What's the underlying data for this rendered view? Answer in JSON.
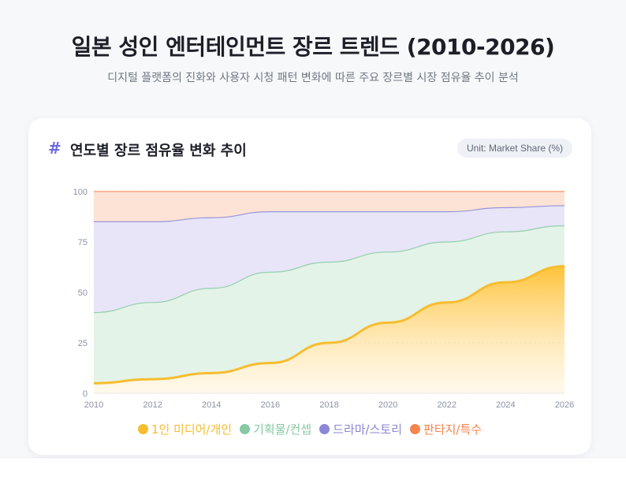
{
  "page": {
    "title": "일본 성인 엔터테인먼트 장르 트렌드 (2010-2026)",
    "subtitle": "디지털 플랫폼의 진화와 사용자 시청 패턴 변화에 따른 주요 장르별 시장 점유율 추이 분석"
  },
  "card": {
    "hash": "#",
    "title": "연도별 장르 점유율 변화 추이",
    "unit": "Unit: Market Share (%)"
  },
  "chart_data": {
    "type": "area",
    "stacked": true,
    "cumulative_values": true,
    "title": "연도별 장르 점유율 변화 추이",
    "ylabel": "Market Share (%)",
    "xlabel": "",
    "x": [
      2010,
      2012,
      2014,
      2016,
      2018,
      2020,
      2022,
      2024,
      2026
    ],
    "x_ticks": [
      "2010",
      "2012",
      "2014",
      "2016",
      "2018",
      "2020",
      "2022",
      "2024",
      "2026"
    ],
    "y_ticks": [
      "0",
      "25",
      "50",
      "75",
      "100"
    ],
    "ylim": [
      0,
      100
    ],
    "series": [
      {
        "name": "1인 미디어/개인",
        "color": "#f6bd30",
        "values": [
          5,
          7,
          10,
          15,
          25,
          35,
          45,
          55,
          63
        ]
      },
      {
        "name": "기획물/컨셉",
        "color": "#86c9a2",
        "values": [
          40,
          45,
          52,
          60,
          65,
          70,
          75,
          80,
          83
        ]
      },
      {
        "name": "드라마/스토리",
        "color": "#8b86d6",
        "values": [
          85,
          85,
          87,
          90,
          90,
          90,
          90,
          92,
          93
        ]
      },
      {
        "name": "판타지/특수",
        "color": "#f6844f",
        "values": [
          100,
          100,
          100,
          100,
          100,
          100,
          100,
          100,
          100
        ]
      }
    ],
    "legend_position": "bottom"
  }
}
